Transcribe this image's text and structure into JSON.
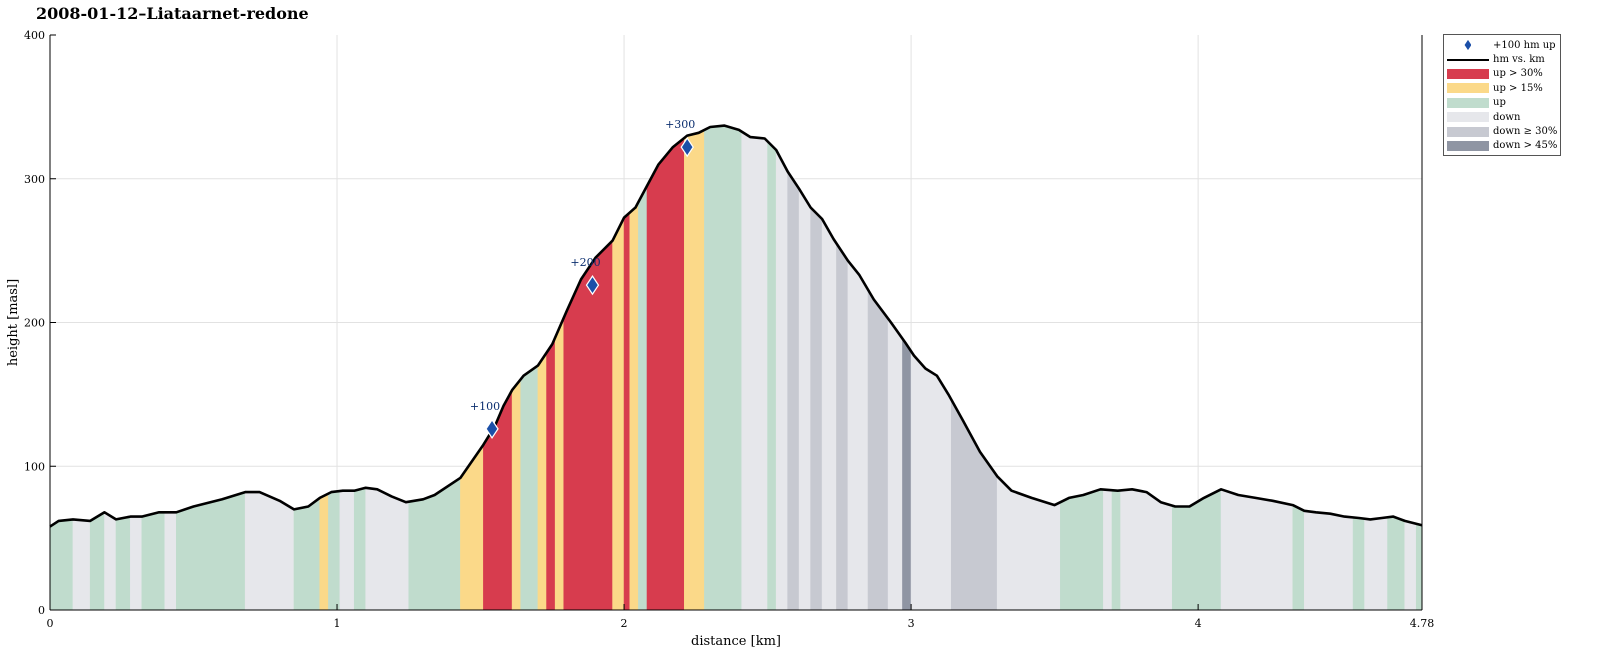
{
  "chart_data": {
    "type": "area",
    "title": "2008-01-12–Liataarnet-redone",
    "xlabel": "distance [km]",
    "ylabel": "height [masl]",
    "xlim": [
      0,
      4.78
    ],
    "ylim": [
      0,
      400
    ],
    "xticks": [
      "0",
      "1",
      "2",
      "3",
      "4",
      "4.78"
    ],
    "xtick_values": [
      0,
      1,
      2,
      3,
      4,
      4.78
    ],
    "yticks": [
      "0",
      "100",
      "200",
      "300",
      "400"
    ],
    "ytick_values": [
      0,
      100,
      200,
      300,
      400
    ],
    "grid": true,
    "legend_placement": "outside-top-right",
    "profile": {
      "x": [
        0,
        0.03,
        0.08,
        0.14,
        0.19,
        0.23,
        0.28,
        0.32,
        0.38,
        0.44,
        0.5,
        0.6,
        0.68,
        0.73,
        0.8,
        0.85,
        0.9,
        0.94,
        0.98,
        1.02,
        1.06,
        1.1,
        1.14,
        1.19,
        1.24,
        1.3,
        1.34,
        1.43,
        1.51,
        1.55,
        1.58,
        1.61,
        1.65,
        1.7,
        1.75,
        1.8,
        1.85,
        1.9,
        1.96,
        2.0,
        2.04,
        2.08,
        2.12,
        2.17,
        2.22,
        2.26,
        2.3,
        2.35,
        2.4,
        2.44,
        2.49,
        2.53,
        2.57,
        2.61,
        2.65,
        2.69,
        2.73,
        2.78,
        2.82,
        2.87,
        2.93,
        2.98,
        3.01,
        3.05,
        3.09,
        3.13,
        3.18,
        3.24,
        3.3,
        3.35,
        3.42,
        3.5,
        3.55,
        3.6,
        3.66,
        3.72,
        3.77,
        3.82,
        3.87,
        3.92,
        3.97,
        4.02,
        4.08,
        4.14,
        4.2,
        4.26,
        4.33,
        4.37,
        4.41,
        4.46,
        4.51,
        4.56,
        4.6,
        4.64,
        4.68,
        4.72,
        4.78
      ],
      "y": [
        58,
        62,
        63,
        62,
        68,
        63,
        65,
        65,
        68,
        68,
        72,
        77,
        82,
        82,
        76,
        70,
        72,
        78,
        82,
        83,
        83,
        85,
        84,
        79,
        75,
        77,
        80,
        92,
        115,
        128,
        142,
        153,
        163,
        170,
        185,
        208,
        230,
        245,
        257,
        273,
        280,
        295,
        310,
        322,
        330,
        332,
        336,
        337,
        334,
        329,
        328,
        320,
        305,
        293,
        280,
        272,
        258,
        243,
        233,
        216,
        200,
        186,
        177,
        168,
        163,
        150,
        132,
        110,
        93,
        83,
        78,
        73,
        78,
        80,
        84,
        83,
        84,
        82,
        75,
        72,
        72,
        78,
        84,
        80,
        78,
        76,
        73,
        69,
        68,
        67,
        65,
        64,
        63,
        64,
        65,
        62,
        59
      ]
    },
    "bands": [
      {
        "from": 0.0,
        "to": 0.08,
        "cat": "up"
      },
      {
        "from": 0.08,
        "to": 0.14,
        "cat": "down"
      },
      {
        "from": 0.14,
        "to": 0.19,
        "cat": "up"
      },
      {
        "from": 0.19,
        "to": 0.23,
        "cat": "down"
      },
      {
        "from": 0.23,
        "to": 0.28,
        "cat": "up"
      },
      {
        "from": 0.28,
        "to": 0.32,
        "cat": "down"
      },
      {
        "from": 0.32,
        "to": 0.4,
        "cat": "up"
      },
      {
        "from": 0.4,
        "to": 0.44,
        "cat": "down"
      },
      {
        "from": 0.44,
        "to": 0.68,
        "cat": "up"
      },
      {
        "from": 0.68,
        "to": 0.85,
        "cat": "down"
      },
      {
        "from": 0.85,
        "to": 0.94,
        "cat": "up"
      },
      {
        "from": 0.94,
        "to": 0.97,
        "cat": "up15"
      },
      {
        "from": 0.97,
        "to": 1.01,
        "cat": "up"
      },
      {
        "from": 1.01,
        "to": 1.06,
        "cat": "down"
      },
      {
        "from": 1.06,
        "to": 1.1,
        "cat": "up"
      },
      {
        "from": 1.1,
        "to": 1.25,
        "cat": "down"
      },
      {
        "from": 1.25,
        "to": 1.43,
        "cat": "up"
      },
      {
        "from": 1.43,
        "to": 1.51,
        "cat": "up15"
      },
      {
        "from": 1.51,
        "to": 1.61,
        "cat": "up30"
      },
      {
        "from": 1.61,
        "to": 1.64,
        "cat": "up15"
      },
      {
        "from": 1.64,
        "to": 1.7,
        "cat": "up"
      },
      {
        "from": 1.7,
        "to": 1.73,
        "cat": "up15"
      },
      {
        "from": 1.73,
        "to": 1.76,
        "cat": "up30"
      },
      {
        "from": 1.76,
        "to": 1.79,
        "cat": "up15"
      },
      {
        "from": 1.79,
        "to": 1.96,
        "cat": "up30"
      },
      {
        "from": 1.96,
        "to": 2.0,
        "cat": "up15"
      },
      {
        "from": 2.0,
        "to": 2.02,
        "cat": "up30"
      },
      {
        "from": 2.02,
        "to": 2.05,
        "cat": "up15"
      },
      {
        "from": 2.05,
        "to": 2.08,
        "cat": "up"
      },
      {
        "from": 2.08,
        "to": 2.21,
        "cat": "up30"
      },
      {
        "from": 2.21,
        "to": 2.28,
        "cat": "up15"
      },
      {
        "from": 2.28,
        "to": 2.41,
        "cat": "up"
      },
      {
        "from": 2.41,
        "to": 2.5,
        "cat": "down"
      },
      {
        "from": 2.5,
        "to": 2.53,
        "cat": "up"
      },
      {
        "from": 2.53,
        "to": 2.57,
        "cat": "down"
      },
      {
        "from": 2.57,
        "to": 2.61,
        "cat": "down30"
      },
      {
        "from": 2.61,
        "to": 2.65,
        "cat": "down"
      },
      {
        "from": 2.65,
        "to": 2.69,
        "cat": "down30"
      },
      {
        "from": 2.69,
        "to": 2.74,
        "cat": "down"
      },
      {
        "from": 2.74,
        "to": 2.78,
        "cat": "down30"
      },
      {
        "from": 2.78,
        "to": 2.85,
        "cat": "down"
      },
      {
        "from": 2.85,
        "to": 2.92,
        "cat": "down30"
      },
      {
        "from": 2.92,
        "to": 2.97,
        "cat": "down"
      },
      {
        "from": 2.97,
        "to": 3.0,
        "cat": "down45"
      },
      {
        "from": 3.0,
        "to": 3.14,
        "cat": "down"
      },
      {
        "from": 3.14,
        "to": 3.3,
        "cat": "down30"
      },
      {
        "from": 3.3,
        "to": 3.52,
        "cat": "down"
      },
      {
        "from": 3.52,
        "to": 3.67,
        "cat": "up"
      },
      {
        "from": 3.67,
        "to": 3.7,
        "cat": "down"
      },
      {
        "from": 3.7,
        "to": 3.73,
        "cat": "up"
      },
      {
        "from": 3.73,
        "to": 3.91,
        "cat": "down"
      },
      {
        "from": 3.91,
        "to": 4.08,
        "cat": "up"
      },
      {
        "from": 4.08,
        "to": 4.33,
        "cat": "down"
      },
      {
        "from": 4.33,
        "to": 4.37,
        "cat": "up"
      },
      {
        "from": 4.37,
        "to": 4.54,
        "cat": "down"
      },
      {
        "from": 4.54,
        "to": 4.58,
        "cat": "up"
      },
      {
        "from": 4.58,
        "to": 4.66,
        "cat": "down"
      },
      {
        "from": 4.66,
        "to": 4.72,
        "cat": "up"
      },
      {
        "from": 4.72,
        "to": 4.76,
        "cat": "down"
      },
      {
        "from": 4.76,
        "to": 4.78,
        "cat": "up"
      }
    ],
    "markers": [
      {
        "x": 1.54,
        "y": 126,
        "label": "+100"
      },
      {
        "x": 1.89,
        "y": 226,
        "label": "+200"
      },
      {
        "x": 2.22,
        "y": 322,
        "label": "+300"
      }
    ],
    "legend": [
      {
        "key": "marker",
        "label": "+100 hm up"
      },
      {
        "key": "line",
        "label": "hm vs. km"
      },
      {
        "key": "up30",
        "label": "up > 30%"
      },
      {
        "key": "up15",
        "label": "up > 15%"
      },
      {
        "key": "up",
        "label": "up"
      },
      {
        "key": "down",
        "label": "down"
      },
      {
        "key": "down30",
        "label": "down ≥ 30%"
      },
      {
        "key": "down45",
        "label": "down > 45%"
      }
    ],
    "colors": {
      "up30": "#d73c4e",
      "up15": "#fbd989",
      "up": "#c0dccd",
      "down": "#e6e7eb",
      "down30": "#c7c9d1",
      "down45": "#8f95a3",
      "line": "#000000",
      "marker": "#1b4fa8",
      "grid": "#e2e2e2"
    }
  }
}
